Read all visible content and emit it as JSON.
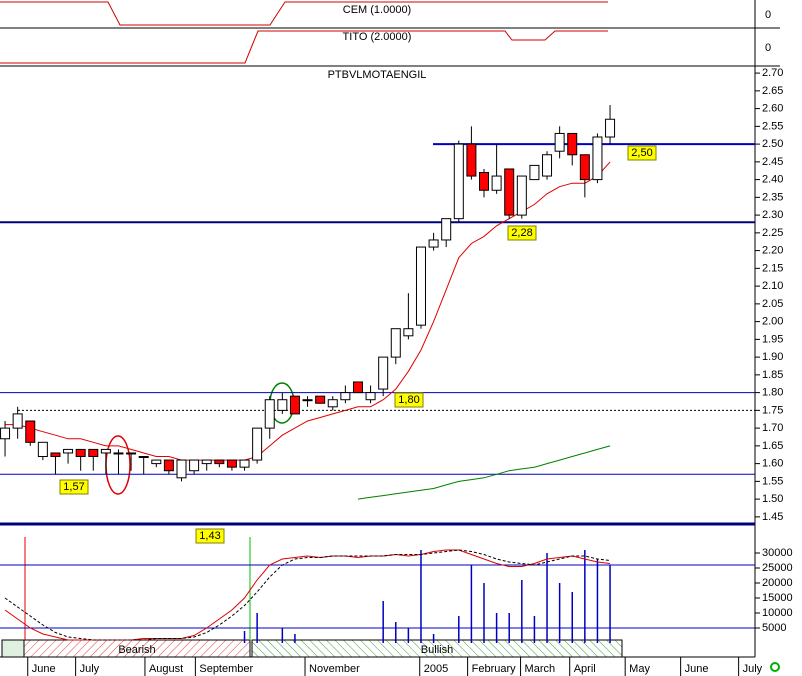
{
  "chart_data": {
    "type": "candlestick",
    "title": "PTBVLMOTAENGIL",
    "panel_titles": [
      "CEM (1.0000)",
      "TITO (2.0000)"
    ],
    "panel_ticks": [
      "0",
      "0"
    ],
    "xlim": [
      -0.4,
      59.5
    ],
    "xticks": [
      {
        "value": 1.8,
        "label": "June"
      },
      {
        "value": 5.6,
        "label": "July"
      },
      {
        "value": 11.1,
        "label": "August"
      },
      {
        "value": 15.1,
        "label": "September"
      },
      {
        "value": 23.8,
        "label": "November"
      },
      {
        "value": 32.9,
        "label": "2005"
      },
      {
        "value": 36.7,
        "label": "February"
      },
      {
        "value": 40.9,
        "label": "March"
      },
      {
        "value": 44.8,
        "label": "April"
      },
      {
        "value": 49.2,
        "label": "May"
      },
      {
        "value": 53.6,
        "label": "June"
      },
      {
        "value": 58.2,
        "label": "July"
      }
    ],
    "ylim": [
      1.413,
      2.72
    ],
    "yticks": [
      {
        "value": 2.7,
        "label": "2.70"
      },
      {
        "value": 2.65,
        "label": "2.65"
      },
      {
        "value": 2.6,
        "label": "2.60"
      },
      {
        "value": 2.55,
        "label": "2.55"
      },
      {
        "value": 2.5,
        "label": "2.50"
      },
      {
        "value": 2.45,
        "label": "2.45"
      },
      {
        "value": 2.4,
        "label": "2.40"
      },
      {
        "value": 2.35,
        "label": "2.35"
      },
      {
        "value": 2.3,
        "label": "2.30"
      },
      {
        "value": 2.25,
        "label": "2.25"
      },
      {
        "value": 2.2,
        "label": "2.20"
      },
      {
        "value": 2.15,
        "label": "2.15"
      },
      {
        "value": 2.1,
        "label": "2.10"
      },
      {
        "value": 2.05,
        "label": "2.05"
      },
      {
        "value": 2.0,
        "label": "2.00"
      },
      {
        "value": 1.95,
        "label": "1.95"
      },
      {
        "value": 1.9,
        "label": "1.90"
      },
      {
        "value": 1.85,
        "label": "1.85"
      },
      {
        "value": 1.8,
        "label": "1.80"
      },
      {
        "value": 1.75,
        "label": "1.75"
      },
      {
        "value": 1.7,
        "label": "1.70"
      },
      {
        "value": 1.65,
        "label": "1.65"
      },
      {
        "value": 1.6,
        "label": "1.60"
      },
      {
        "value": 1.55,
        "label": "1.55"
      },
      {
        "value": 1.5,
        "label": "1.50"
      },
      {
        "value": 1.45,
        "label": "1.45"
      }
    ],
    "open": [
      1.67,
      1.7,
      1.72,
      1.62,
      1.63,
      1.63,
      1.64,
      1.64,
      1.63,
      1.63,
      1.63,
      1.62,
      1.6,
      1.61,
      1.56,
      1.58,
      1.6,
      1.61,
      1.61,
      1.59,
      1.61,
      1.7,
      1.75,
      1.79,
      1.78,
      1.79,
      1.76,
      1.78,
      1.83,
      1.78,
      1.81,
      1.9,
      1.96,
      1.99,
      2.21,
      2.23,
      2.29,
      2.5,
      2.42,
      2.37,
      2.43,
      2.3,
      2.4,
      2.41,
      2.48,
      2.53,
      2.47,
      2.4,
      2.52
    ],
    "high": [
      1.72,
      1.76,
      1.72,
      1.66,
      1.63,
      1.64,
      1.64,
      1.64,
      1.64,
      1.64,
      1.63,
      1.62,
      1.61,
      1.61,
      1.61,
      1.61,
      1.61,
      1.61,
      1.61,
      1.61,
      1.7,
      1.79,
      1.8,
      1.79,
      1.79,
      1.79,
      1.79,
      1.82,
      1.83,
      1.82,
      1.9,
      1.98,
      2.08,
      2.21,
      2.25,
      2.29,
      2.51,
      2.55,
      2.43,
      2.5,
      2.43,
      2.41,
      2.44,
      2.48,
      2.55,
      2.53,
      2.47,
      2.53,
      2.61
    ],
    "low": [
      1.62,
      1.67,
      1.65,
      1.61,
      1.57,
      1.6,
      1.58,
      1.58,
      1.57,
      1.57,
      1.58,
      1.57,
      1.59,
      1.57,
      1.55,
      1.57,
      1.58,
      1.59,
      1.58,
      1.58,
      1.6,
      1.67,
      1.74,
      1.74,
      1.76,
      1.77,
      1.75,
      1.77,
      1.8,
      1.77,
      1.79,
      1.88,
      1.95,
      1.98,
      2.2,
      2.21,
      2.28,
      2.4,
      2.35,
      2.36,
      2.29,
      2.29,
      2.4,
      2.4,
      2.46,
      2.44,
      2.35,
      2.39,
      2.5
    ],
    "close": [
      1.7,
      1.74,
      1.66,
      1.66,
      1.62,
      1.64,
      1.62,
      1.62,
      1.64,
      1.63,
      1.63,
      1.62,
      1.61,
      1.58,
      1.61,
      1.61,
      1.61,
      1.6,
      1.59,
      1.61,
      1.7,
      1.78,
      1.78,
      1.74,
      1.78,
      1.77,
      1.78,
      1.8,
      1.8,
      1.8,
      1.9,
      1.98,
      1.98,
      2.21,
      2.23,
      2.29,
      2.5,
      2.41,
      2.37,
      2.41,
      2.3,
      2.41,
      2.44,
      2.47,
      2.53,
      2.47,
      2.4,
      2.52,
      2.57
    ],
    "up_color": "#ffffff",
    "down_color": "#ff0000",
    "series": [
      {
        "color": "#e00000",
        "values": [
          1.71,
          1.71,
          1.7,
          1.69,
          1.68,
          1.67,
          1.67,
          1.66,
          1.65,
          1.65,
          1.64,
          1.63,
          1.62,
          1.62,
          1.61,
          1.61,
          1.61,
          1.61,
          1.61,
          1.61,
          1.62,
          1.65,
          1.68,
          1.7,
          1.72,
          1.73,
          1.74,
          1.75,
          1.76,
          1.76,
          1.78,
          1.81,
          1.86,
          1.92,
          2.0,
          2.09,
          2.18,
          2.22,
          2.24,
          2.27,
          2.29,
          2.31,
          2.33,
          2.36,
          2.38,
          2.39,
          2.39,
          2.41,
          2.45
        ]
      },
      {
        "color": "#008000",
        "values": [
          null,
          null,
          null,
          null,
          null,
          null,
          null,
          null,
          null,
          null,
          null,
          null,
          null,
          null,
          null,
          null,
          null,
          null,
          null,
          null,
          null,
          null,
          null,
          null,
          null,
          null,
          null,
          null,
          1.5,
          1.505,
          1.51,
          1.515,
          1.52,
          1.525,
          1.53,
          1.54,
          1.55,
          1.555,
          1.56,
          1.57,
          1.58,
          1.585,
          1.59,
          1.6,
          1.61,
          1.62,
          1.63,
          1.64,
          1.65
        ]
      }
    ],
    "levels": [
      {
        "value": 2.5,
        "label": "2,50",
        "color": "#0000c0"
      },
      {
        "value": 2.28,
        "label": "2,28",
        "color": "#000080"
      },
      {
        "value": 1.8,
        "label": "1,80",
        "color": "#0000c0"
      },
      {
        "value": 1.57,
        "label": "1,57",
        "color": "#0000c0"
      },
      {
        "value": 1.43,
        "label": "1,43",
        "color": "#000080"
      }
    ],
    "dashed_level": 1.75,
    "volume": {
      "ylim": [
        0,
        35000
      ],
      "yticks": [
        30000,
        25000,
        20000,
        15000,
        10000,
        5000
      ],
      "color": "#0000c0",
      "values": [
        null,
        null,
        null,
        null,
        null,
        null,
        null,
        null,
        null,
        null,
        null,
        null,
        null,
        null,
        null,
        null,
        null,
        null,
        null,
        4000,
        10000,
        null,
        5000,
        3000,
        null,
        null,
        null,
        null,
        null,
        null,
        14000,
        7000,
        5000,
        31000,
        3000,
        null,
        9000,
        26000,
        20000,
        10000,
        10000,
        21000,
        9000,
        30000,
        20000,
        17000,
        31000,
        28000,
        26000
      ],
      "levels": [
        26000,
        5000
      ],
      "oscillators": [
        {
          "color": "#e00000",
          "dashed": false,
          "values": [
            11000,
            8000,
            5000,
            3000,
            2000,
            1000,
            1000,
            1000,
            1000,
            1000,
            1000,
            1500,
            1500,
            1500,
            1500,
            2500,
            5000,
            8000,
            11000,
            15000,
            21000,
            26000,
            28000,
            28500,
            29000,
            28500,
            29000,
            29000,
            28500,
            29000,
            29000,
            29500,
            29000,
            29500,
            30500,
            31000,
            31000,
            29500,
            28000,
            26500,
            25500,
            25500,
            26500,
            28000,
            28500,
            29000,
            28000,
            27000,
            26500
          ]
        },
        {
          "color": "#000000",
          "dashed": true,
          "values": [
            15000,
            12000,
            9000,
            6000,
            3500,
            2000,
            1500,
            1000,
            1000,
            1000,
            1000,
            1000,
            1500,
            1500,
            1500,
            2000,
            3500,
            6000,
            9000,
            12500,
            17000,
            22000,
            26000,
            28000,
            28500,
            28500,
            29000,
            29000,
            29000,
            29000,
            29000,
            29500,
            29500,
            29500,
            30000,
            30500,
            31000,
            30500,
            29500,
            28000,
            27000,
            26500,
            26000,
            27000,
            28000,
            29000,
            29000,
            28000,
            27500
          ]
        }
      ]
    },
    "phases": [
      "Bearish",
      "Bullish"
    ]
  }
}
